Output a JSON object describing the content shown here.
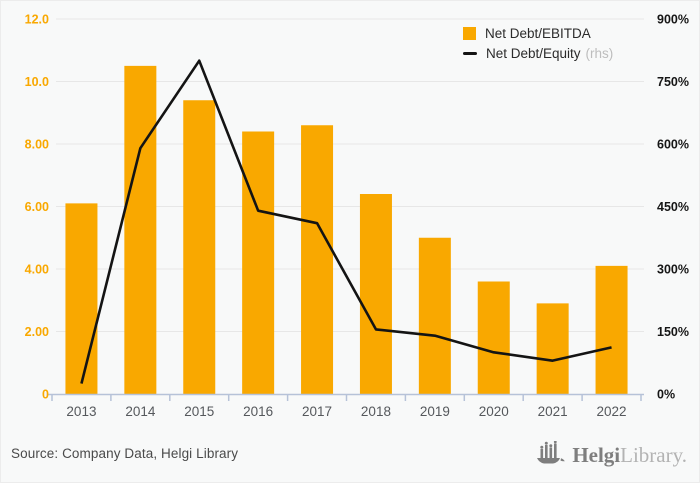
{
  "colors": {
    "background": "#f8f9f9",
    "bar": "#F9A800",
    "line": "#141414",
    "grid": "#e7e7e7",
    "axis_line": "#b6c2d8",
    "left_axis_text": "#F9A800",
    "right_axis_text": "#161616",
    "x_axis_text": "#55585c",
    "source_text": "#4a4a4a",
    "legend_text": "#2b2b2b",
    "rhs_text": "#bdbdbd",
    "logo_dark": "#7e7e7e",
    "logo_light": "#b3b3b3"
  },
  "legend": {
    "items": [
      {
        "label": "Net Debt/EBITDA",
        "swatch": "orange-square",
        "suffix": ""
      },
      {
        "label": "Net Debt/Equity",
        "swatch": "black-line",
        "suffix": "(rhs)"
      }
    ]
  },
  "footer": {
    "source": "Source: Company Data, Helgi Library",
    "logo_bold": "Helgi",
    "logo_light": "Library."
  },
  "chart_data": {
    "type": "bar",
    "subtype": "bar+line-dual-axis",
    "categories": [
      "2013",
      "2014",
      "2015",
      "2016",
      "2017",
      "2018",
      "2019",
      "2020",
      "2021",
      "2022"
    ],
    "series": [
      {
        "name": "Net Debt/EBITDA",
        "type": "bar",
        "axis": "left",
        "color": "#F9A800",
        "values": [
          6.1,
          10.5,
          9.4,
          8.4,
          8.6,
          6.4,
          5.0,
          3.6,
          2.9,
          4.1
        ]
      },
      {
        "name": "Net Debt/Equity (rhs)",
        "type": "line",
        "axis": "right",
        "color": "#141414",
        "values": [
          25,
          590,
          800,
          440,
          410,
          155,
          140,
          100,
          80,
          112
        ]
      }
    ],
    "title": "",
    "xlabel": "",
    "ylabel": "",
    "grid": true,
    "legend_position": "top-right",
    "left_axis": {
      "range": [
        0,
        12
      ],
      "ticks": [
        {
          "label": "12.0",
          "value": 12
        },
        {
          "label": "10.0",
          "value": 10
        },
        {
          "label": "8.00",
          "value": 8
        },
        {
          "label": "6.00",
          "value": 6
        },
        {
          "label": "4.00",
          "value": 4
        },
        {
          "label": "2.00",
          "value": 2
        },
        {
          "label": "0",
          "value": 0
        }
      ]
    },
    "right_axis": {
      "range": [
        0,
        900
      ],
      "ticks": [
        {
          "label": "900%",
          "value": 900
        },
        {
          "label": "750%",
          "value": 750
        },
        {
          "label": "600%",
          "value": 600
        },
        {
          "label": "450%",
          "value": 450
        },
        {
          "label": "300%",
          "value": 300
        },
        {
          "label": "150%",
          "value": 150
        },
        {
          "label": "0%",
          "value": 0
        }
      ]
    }
  }
}
